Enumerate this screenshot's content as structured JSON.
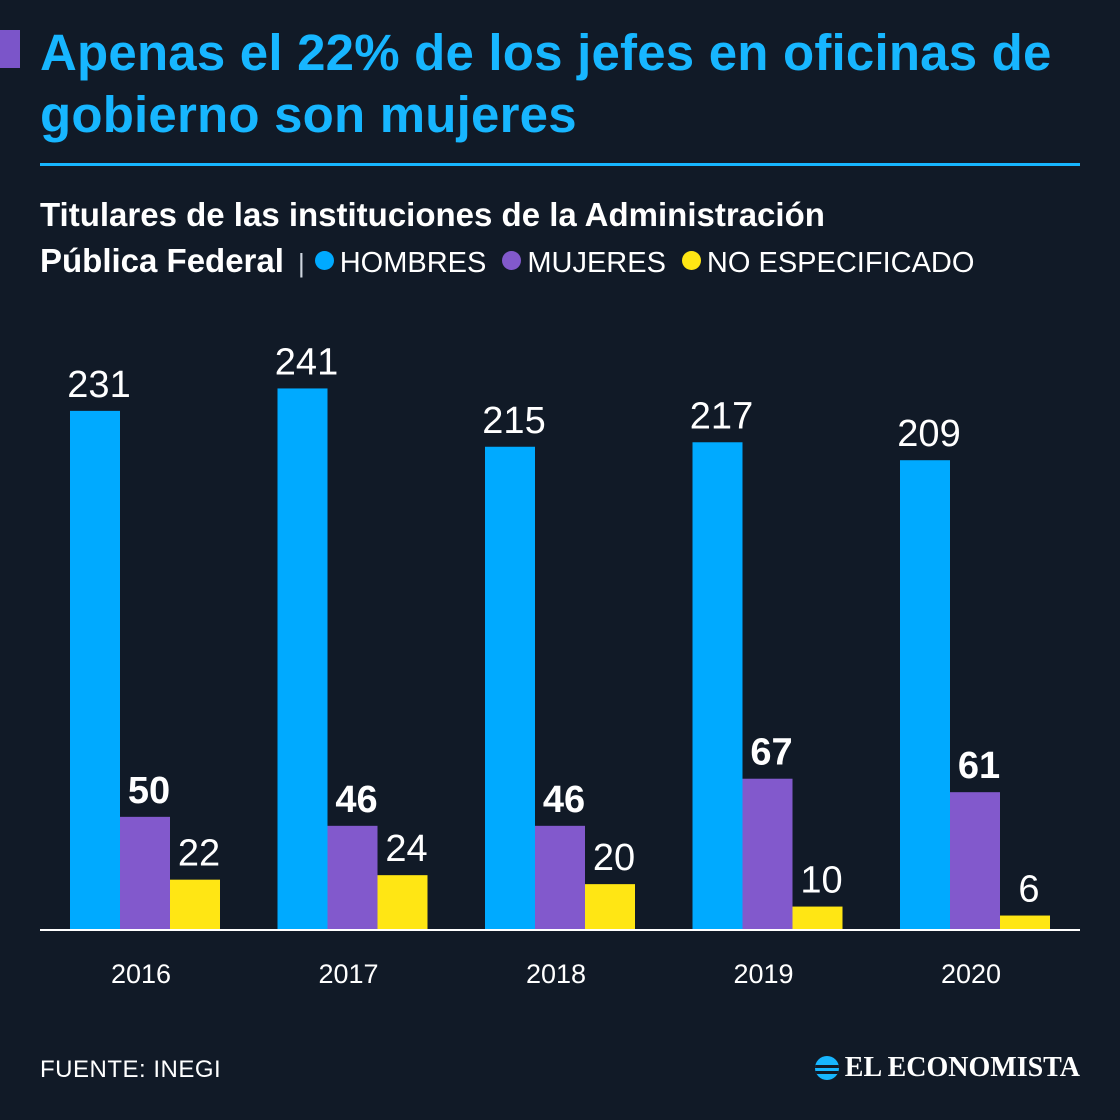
{
  "header": {
    "title": "Apenas el 22% de los jefes en oficinas de gobierno son mujeres",
    "subtitle_line1": "Titulares de las instituciones de la Administración",
    "subtitle_line2": "Pública Federal",
    "separator": "|"
  },
  "footer": {
    "source": "FUENTE: INEGI",
    "brand": "EL ECONOMISTA"
  },
  "colors": {
    "background": "#111a27",
    "accent": "#17b6ff",
    "hombres": "#00aaff",
    "mujeres": "#8259cc",
    "no_especificado": "#ffe614"
  },
  "chart_data": {
    "type": "bar",
    "categories": [
      "2016",
      "2017",
      "2018",
      "2019",
      "2020"
    ],
    "series": [
      {
        "name": "HOMBRES",
        "values": [
          231,
          241,
          215,
          217,
          209
        ],
        "color": "#00aaff",
        "label_bold": false
      },
      {
        "name": "MUJERES",
        "values": [
          50,
          46,
          46,
          67,
          61
        ],
        "color": "#8259cc",
        "label_bold": true
      },
      {
        "name": "NO ESPECIFICADO",
        "values": [
          22,
          24,
          20,
          10,
          6
        ],
        "color": "#ffe614",
        "label_bold": false
      }
    ],
    "legend": "top-left",
    "grid": false
  }
}
